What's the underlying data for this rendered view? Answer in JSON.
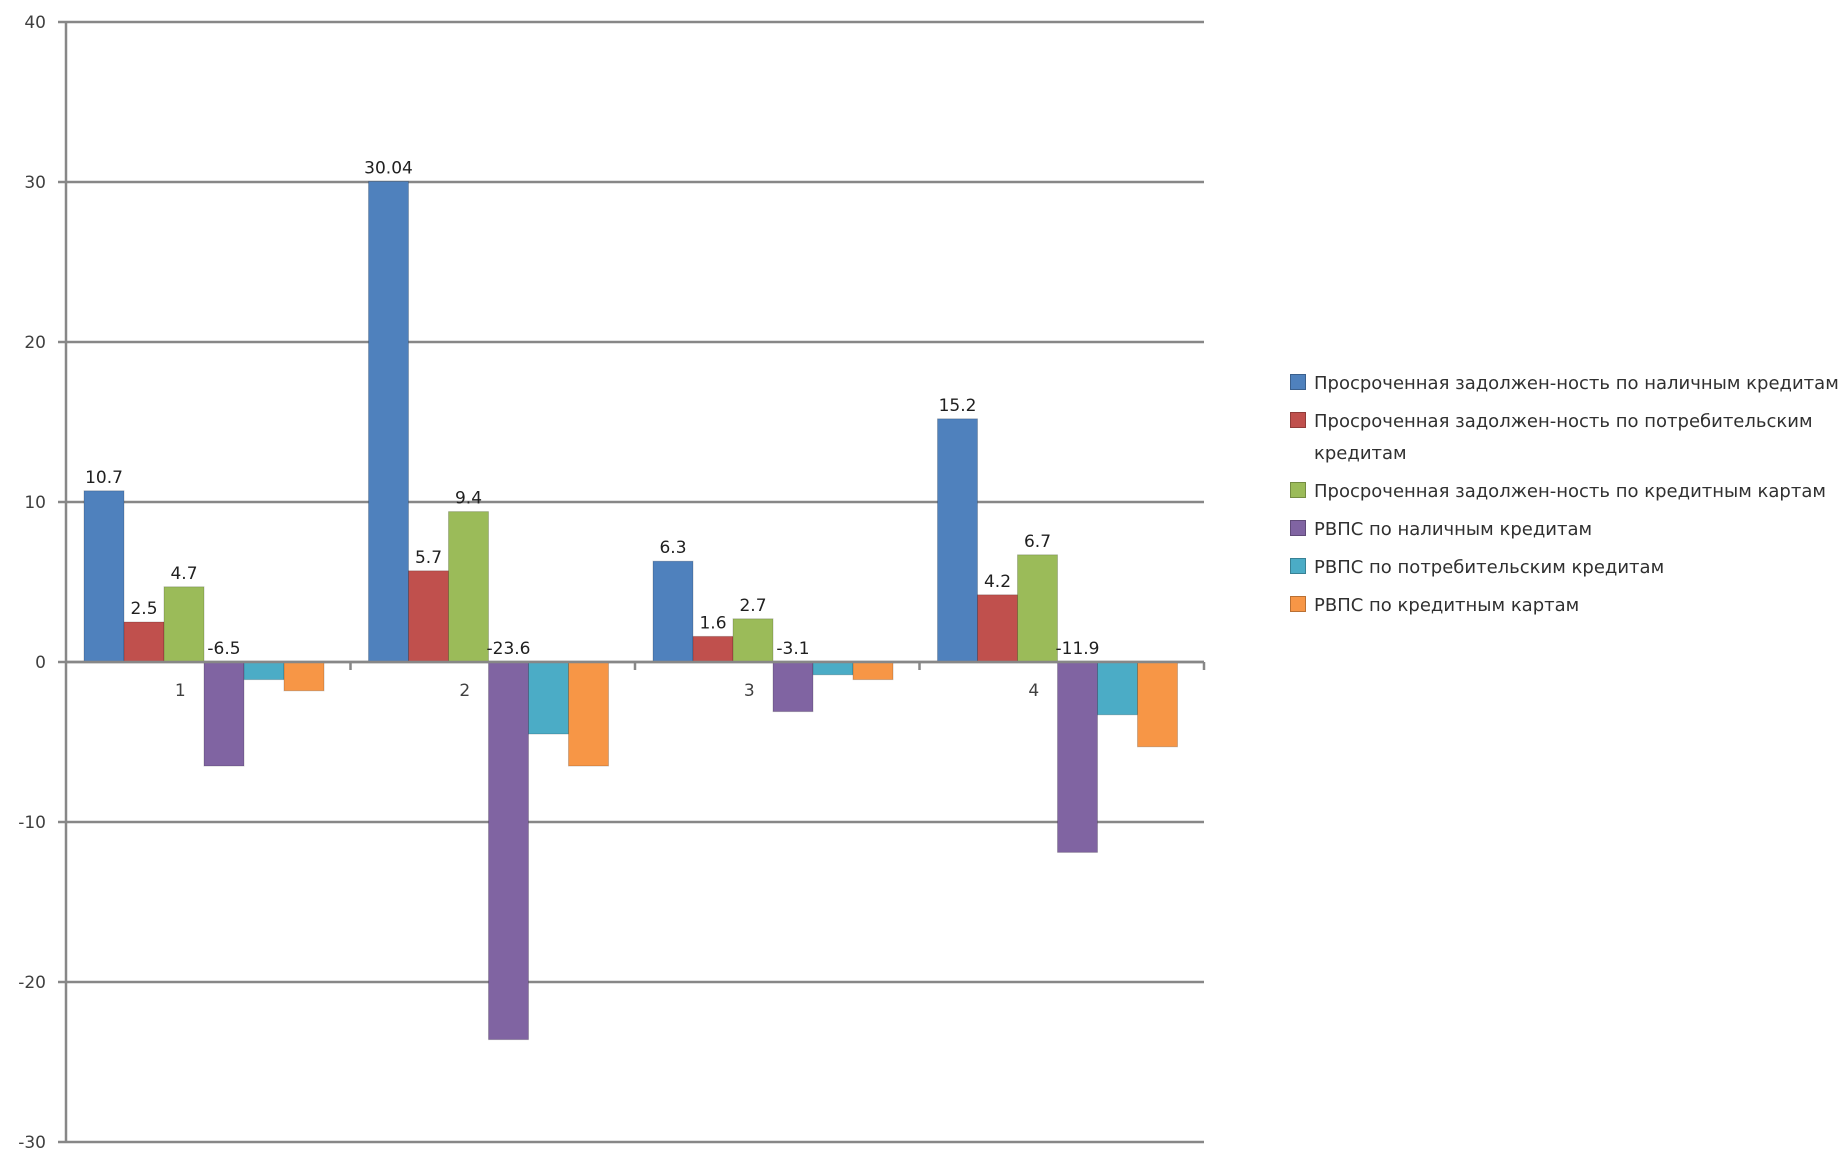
{
  "chart_data": {
    "type": "bar",
    "title": "",
    "xlabel": "",
    "ylabel": "",
    "ylim": [
      -30,
      40
    ],
    "yticks": [
      -30,
      -20,
      -10,
      0,
      10,
      20,
      30,
      40
    ],
    "grid": true,
    "legend_position": "right",
    "categories": [
      "1",
      "2",
      "3",
      "4"
    ],
    "series": [
      {
        "name": "Просроченная задолжен-ность по наличным кредитам",
        "color": "#4F81BD",
        "values": [
          10.7,
          30.04,
          6.3,
          15.2
        ],
        "labels": [
          "10.7",
          "30.04",
          "6.3",
          "15.2"
        ]
      },
      {
        "name": "Просроченная задолжен-ность по потребительским кредитам",
        "color": "#C0504D",
        "values": [
          2.5,
          5.7,
          1.6,
          4.2
        ],
        "labels": [
          "2.5",
          "5.7",
          "1.6",
          "4.2"
        ]
      },
      {
        "name": "Просроченная задолжен-ность по кредитным картам",
        "color": "#9BBB59",
        "values": [
          4.7,
          9.4,
          2.7,
          6.7
        ],
        "labels": [
          "4.7",
          "9.4",
          "2.7",
          "6.7"
        ]
      },
      {
        "name": "РВПС по наличным кредитам",
        "color": "#8064A2",
        "values": [
          -6.5,
          -23.6,
          -3.1,
          -11.9
        ],
        "labels": [
          "-6.5",
          "-23.6",
          "-3.1",
          "-11.9"
        ]
      },
      {
        "name": "РВПС по потребительским кредитам",
        "color": "#4BACC6",
        "values": [
          -1.1,
          -4.5,
          -0.8,
          -3.3
        ],
        "labels": null
      },
      {
        "name": "РВПС по кредитным картам",
        "color": "#F79646",
        "values": [
          -1.8,
          -6.5,
          -1.1,
          -5.3
        ],
        "labels": null
      }
    ]
  }
}
